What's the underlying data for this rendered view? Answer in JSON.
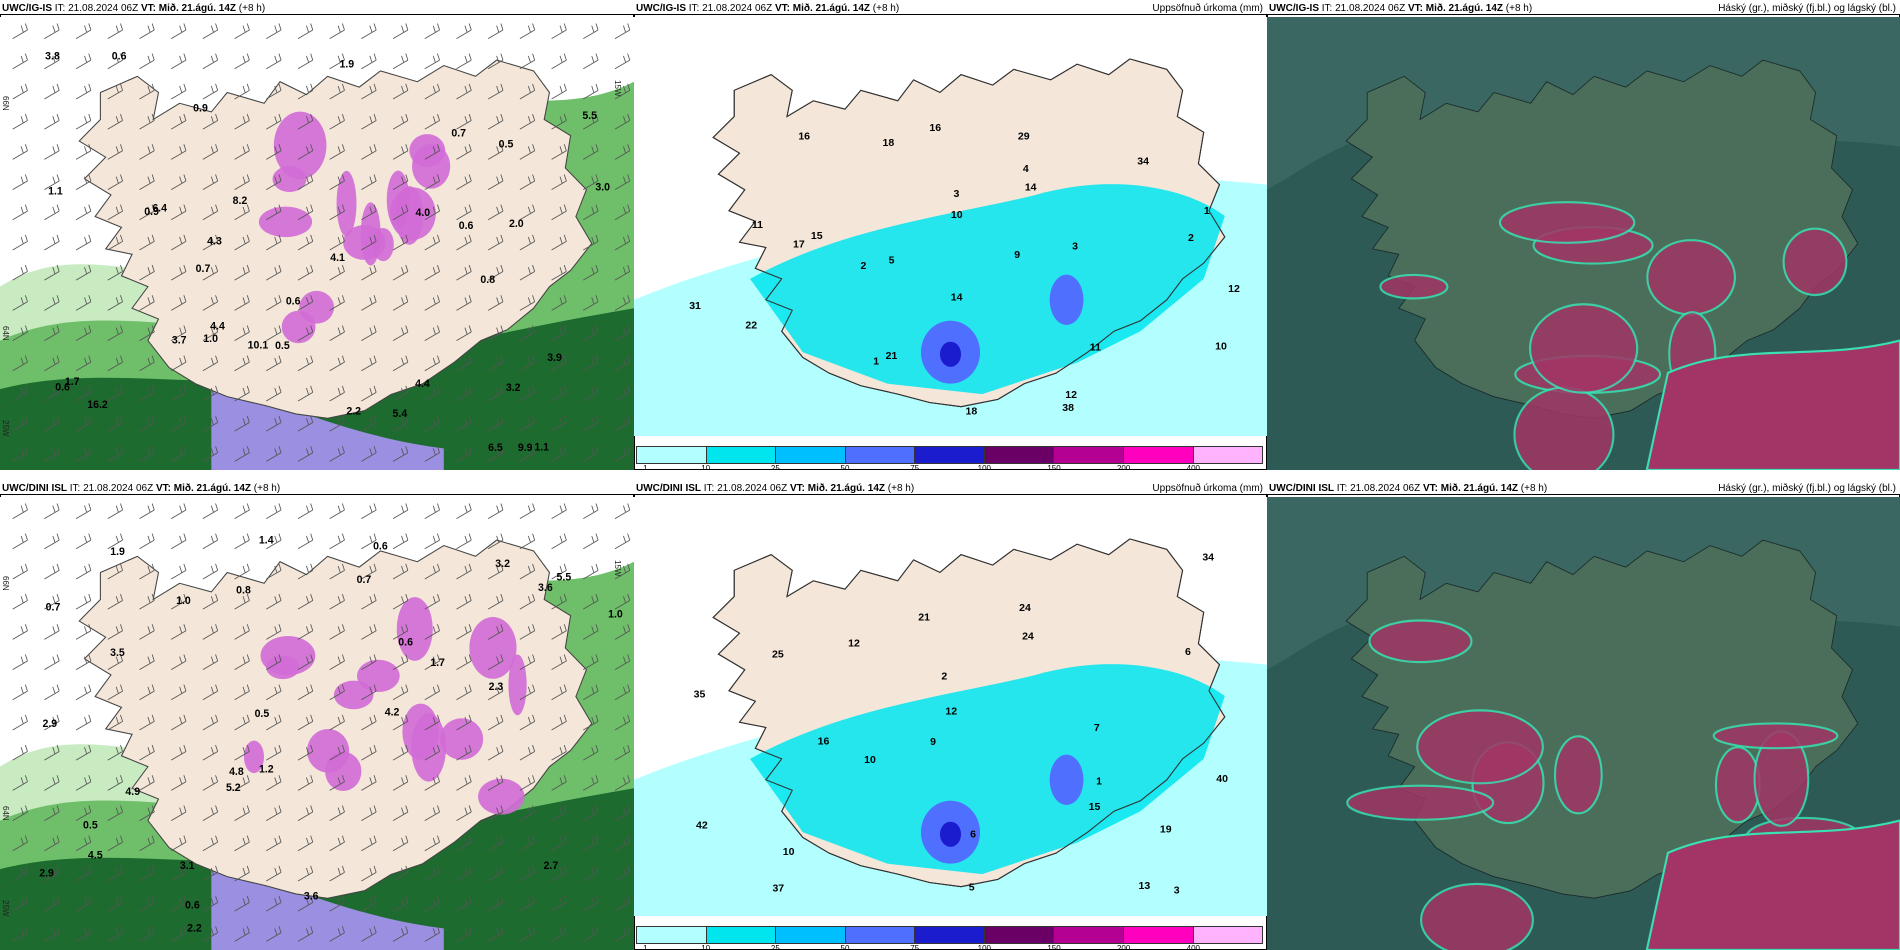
{
  "panels": [
    {
      "id": "top-left",
      "model": "UWC/IG-IS",
      "it_label": "IT:",
      "it_value": "21.08.2024 06Z",
      "vt_label": "VT:",
      "vt_value": "Mið. 21.ágú. 14Z",
      "lead": "(+8 h)",
      "right_title": "",
      "type": "precip-wind",
      "axis_labels": [
        "66N",
        "64N",
        "25W",
        "15W"
      ],
      "values": [
        "0.6",
        "0.9",
        "0.6",
        "0.8",
        "1.1",
        "0.9",
        "0.5",
        "0.7",
        "1.0",
        "0.6",
        "2.0",
        "1.9",
        "3.8",
        "6.5",
        "4.3",
        "4.4",
        "4.1",
        "3.0",
        "5.5",
        "8.2",
        "9.9",
        "6.4",
        "5.4",
        "3.7",
        "3.2",
        "4.0",
        "2.2",
        "1.7",
        "0.5",
        "0.6",
        "4.4",
        "10.1",
        "16.2",
        "3.9",
        "0.7",
        "1.1"
      ]
    },
    {
      "id": "top-middle",
      "model": "UWC/IG-IS",
      "it_label": "IT:",
      "it_value": "21.08.2024 06Z",
      "vt_label": "VT:",
      "vt_value": "Mið. 21.ágú. 14Z",
      "lead": "(+8 h)",
      "right_title": "Uppsöfnuð úrkoma (mm)",
      "type": "accum",
      "values": [
        "1",
        "3",
        "2",
        "1",
        "2",
        "3",
        "4",
        "5",
        "10",
        "11",
        "12",
        "9",
        "14",
        "16",
        "18",
        "29",
        "11",
        "22",
        "31",
        "21",
        "17",
        "16",
        "14",
        "10",
        "18",
        "34",
        "38",
        "15",
        "12"
      ]
    },
    {
      "id": "top-right",
      "model": "UWC/IG-IS",
      "it_label": "IT:",
      "it_value": "21.08.2024 06Z",
      "vt_label": "VT:",
      "vt_value": "Mið. 21.ágú. 14Z",
      "lead": "(+8 h)",
      "right_title": "Háský (gr.), miðský (fj.bl.) og lágský (bl.)",
      "type": "cloud"
    },
    {
      "id": "bottom-left",
      "model": "UWC/DINI ISL",
      "it_label": "IT:",
      "it_value": "21.08.2024 06Z",
      "vt_label": "VT:",
      "vt_value": "Mið. 21.ágú. 14Z",
      "lead": "(+8 h)",
      "right_title": "",
      "type": "precip-wind",
      "axis_labels": [
        "66N",
        "64N",
        "25W",
        "15W"
      ],
      "values": [
        "0.7",
        "0.6",
        "1.0",
        "0.8",
        "0.6",
        "0.7",
        "1.9",
        "0.5",
        "0.6",
        "1.0",
        "2.2",
        "4.5",
        "2.9",
        "3.1",
        "3.2",
        "2.3",
        "1.7",
        "2.9",
        "3.6",
        "2.7",
        "3.5",
        "4.2",
        "4.9",
        "3.6",
        "5.2",
        "5.5",
        "4.8",
        "1.4",
        "1.2",
        "0.5"
      ]
    },
    {
      "id": "bottom-middle",
      "model": "UWC/DINI ISL",
      "it_label": "IT:",
      "it_value": "21.08.2024 06Z",
      "vt_label": "VT:",
      "vt_value": "Mið. 21.ágú. 14Z",
      "lead": "(+8 h)",
      "right_title": "Uppsöfnuð úrkoma (mm)",
      "type": "accum",
      "values": [
        "2",
        "3",
        "1",
        "5",
        "7",
        "9",
        "10",
        "12",
        "13",
        "16",
        "21",
        "25",
        "24",
        "34",
        "19",
        "15",
        "12",
        "10",
        "40",
        "6",
        "6",
        "24",
        "35",
        "37",
        "42"
      ]
    },
    {
      "id": "bottom-right",
      "model": "UWC/DINI ISL",
      "it_label": "IT:",
      "it_value": "21.08.2024 06Z",
      "vt_label": "VT:",
      "vt_value": "Mið. 21.ágú. 14Z",
      "lead": "(+8 h)",
      "right_title": "Háský (gr.), miðský (fj.bl.) og lágský (bl.)",
      "type": "cloud"
    }
  ],
  "legend": {
    "ticks": [
      "1",
      "10",
      "25",
      "50",
      "75",
      "100",
      "150",
      "200",
      "400"
    ],
    "colors": [
      "#b3ffff",
      "#00e5ee",
      "#00bfff",
      "#4f6fff",
      "#1c1ccf",
      "#6a0066",
      "#b40093",
      "#ff00bf",
      "#ffb3ff"
    ]
  },
  "palette": {
    "land": "#f4e7d9",
    "sea_accum": "#b3ffff",
    "green_light": "#c8ebc2",
    "green_mid": "#6fbf6a",
    "green_dark": "#1e6b2f",
    "purple": "#d16ad6",
    "cloud_base": "#2e5a56",
    "cloud_red": "#a23565",
    "cloud_line": "#39e0b0"
  }
}
